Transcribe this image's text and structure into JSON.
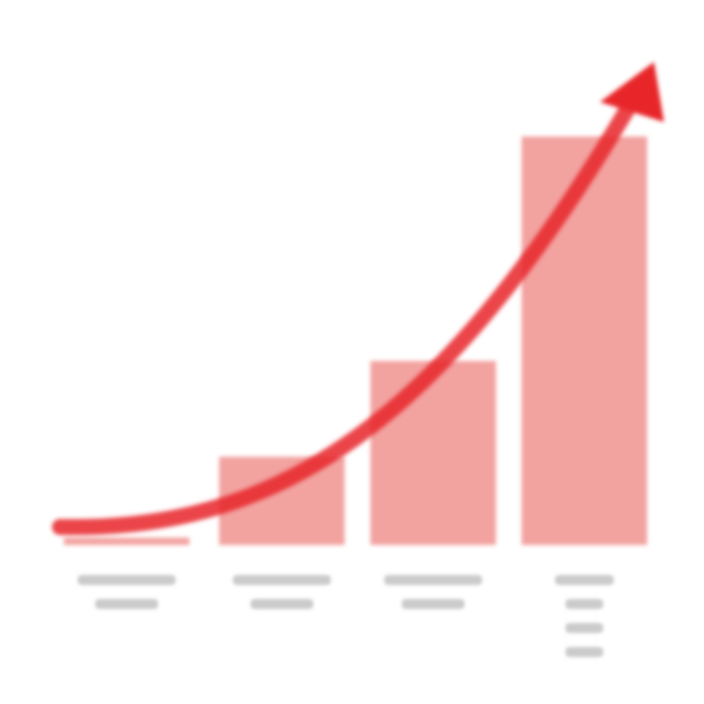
{
  "chart_data": {
    "type": "bar",
    "categories": [
      "",
      "",
      "",
      ""
    ],
    "values": [
      4,
      48,
      100,
      222
    ],
    "ylim": [
      0,
      250
    ],
    "grid": false,
    "legend": "none",
    "trend_arrow": true
  },
  "colors": {
    "background": "#ffffff",
    "bar": "#f2a3a0",
    "arrow": "#e8262a",
    "label": "#b9b9b9"
  }
}
